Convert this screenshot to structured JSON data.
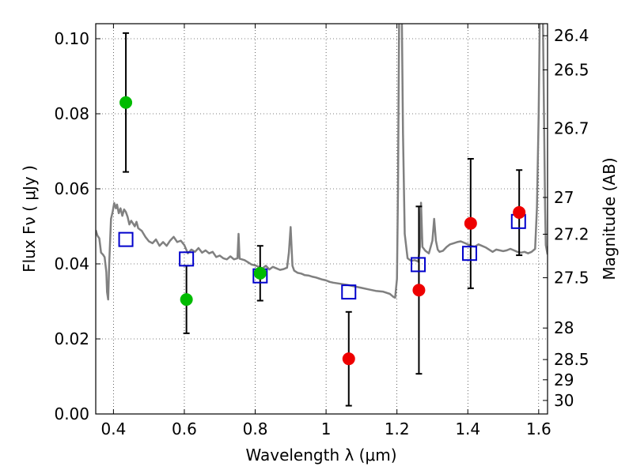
{
  "chart_data": {
    "type": "scatter",
    "xlabel": "Wavelength  λ (μm)",
    "ylabel": "Flux  Fν  ( μJy )",
    "ylabel_right": "Magnitude (AB)",
    "xlim": [
      0.35,
      1.625
    ],
    "ylim": [
      0.0,
      0.104
    ],
    "grid": true,
    "x_ticks": [
      0.4,
      0.6,
      0.8,
      1.0,
      1.2,
      1.4,
      1.6
    ],
    "x_tick_labels": [
      "0.4",
      "0.6",
      "0.8",
      "1",
      "1.2",
      "1.4",
      "1.6"
    ],
    "y_ticks": [
      0.0,
      0.02,
      0.04,
      0.06,
      0.08,
      0.1
    ],
    "y_tick_labels": [
      "0.00",
      "0.02",
      "0.04",
      "0.06",
      "0.08",
      "0.10"
    ],
    "right_ticks": [
      {
        "label": "26.4",
        "flux": 0.1008
      },
      {
        "label": "26.5",
        "flux": 0.0917
      },
      {
        "label": "26.7",
        "flux": 0.0761
      },
      {
        "label": "27",
        "flux": 0.0577
      },
      {
        "label": "27.2",
        "flux": 0.0479
      },
      {
        "label": "27.5",
        "flux": 0.0363
      },
      {
        "label": "28",
        "flux": 0.0229
      },
      {
        "label": "28.5",
        "flux": 0.0145
      },
      {
        "label": "29",
        "flux": 0.0091
      },
      {
        "label": "30",
        "flux": 0.0036
      }
    ],
    "series": [
      {
        "marker": "circle",
        "color": "#00bb00",
        "points": [
          {
            "x": 0.435,
            "y": 0.083,
            "err_lo": 0.0645,
            "err_hi": 0.1015
          },
          {
            "x": 0.606,
            "y": 0.0305,
            "err_lo": 0.0215,
            "err_hi": 0.0395
          },
          {
            "x": 0.814,
            "y": 0.0375,
            "err_lo": 0.0302,
            "err_hi": 0.0448
          }
        ]
      },
      {
        "marker": "circle",
        "color": "#ee0000",
        "points": [
          {
            "x": 1.064,
            "y": 0.0147,
            "err_lo": 0.0022,
            "err_hi": 0.0272
          },
          {
            "x": 1.262,
            "y": 0.033,
            "err_lo": 0.0107,
            "err_hi": 0.0553
          },
          {
            "x": 1.408,
            "y": 0.0508,
            "err_lo": 0.0335,
            "err_hi": 0.068
          },
          {
            "x": 1.545,
            "y": 0.0537,
            "err_lo": 0.0423,
            "err_hi": 0.065
          }
        ]
      },
      {
        "marker": "square",
        "color": "#0000cc",
        "points": [
          {
            "x": 0.435,
            "y": 0.0465
          },
          {
            "x": 0.606,
            "y": 0.0413
          },
          {
            "x": 0.814,
            "y": 0.0368
          },
          {
            "x": 1.064,
            "y": 0.0325
          },
          {
            "x": 1.26,
            "y": 0.0398
          },
          {
            "x": 1.405,
            "y": 0.0428
          },
          {
            "x": 1.543,
            "y": 0.0513
          }
        ]
      },
      {
        "marker": "line",
        "color": "#808080",
        "points": [
          [
            0.35,
            0.049
          ],
          [
            0.355,
            0.0475
          ],
          [
            0.36,
            0.0468
          ],
          [
            0.365,
            0.043
          ],
          [
            0.37,
            0.0425
          ],
          [
            0.375,
            0.0418
          ],
          [
            0.38,
            0.0378
          ],
          [
            0.382,
            0.0325
          ],
          [
            0.385,
            0.0305
          ],
          [
            0.388,
            0.04
          ],
          [
            0.393,
            0.052
          ],
          [
            0.398,
            0.054
          ],
          [
            0.402,
            0.0562
          ],
          [
            0.407,
            0.0548
          ],
          [
            0.41,
            0.0558
          ],
          [
            0.415,
            0.0535
          ],
          [
            0.42,
            0.0548
          ],
          [
            0.425,
            0.0528
          ],
          [
            0.43,
            0.0545
          ],
          [
            0.435,
            0.0538
          ],
          [
            0.44,
            0.0525
          ],
          [
            0.445,
            0.0505
          ],
          [
            0.45,
            0.0515
          ],
          [
            0.455,
            0.0508
          ],
          [
            0.46,
            0.05
          ],
          [
            0.465,
            0.0512
          ],
          [
            0.47,
            0.0495
          ],
          [
            0.48,
            0.0488
          ],
          [
            0.49,
            0.0472
          ],
          [
            0.5,
            0.046
          ],
          [
            0.51,
            0.0455
          ],
          [
            0.52,
            0.0465
          ],
          [
            0.53,
            0.0448
          ],
          [
            0.54,
            0.0458
          ],
          [
            0.55,
            0.0448
          ],
          [
            0.56,
            0.0462
          ],
          [
            0.57,
            0.0472
          ],
          [
            0.58,
            0.0458
          ],
          [
            0.59,
            0.0462
          ],
          [
            0.6,
            0.045
          ],
          [
            0.61,
            0.0428
          ],
          [
            0.62,
            0.0438
          ],
          [
            0.63,
            0.0432
          ],
          [
            0.64,
            0.0442
          ],
          [
            0.65,
            0.043
          ],
          [
            0.66,
            0.0436
          ],
          [
            0.67,
            0.0428
          ],
          [
            0.68,
            0.0432
          ],
          [
            0.69,
            0.0418
          ],
          [
            0.7,
            0.0422
          ],
          [
            0.71,
            0.0415
          ],
          [
            0.72,
            0.0412
          ],
          [
            0.73,
            0.042
          ],
          [
            0.74,
            0.0412
          ],
          [
            0.75,
            0.0415
          ],
          [
            0.753,
            0.048
          ],
          [
            0.756,
            0.0414
          ],
          [
            0.77,
            0.041
          ],
          [
            0.78,
            0.0404
          ],
          [
            0.79,
            0.0398
          ],
          [
            0.8,
            0.0396
          ],
          [
            0.81,
            0.0392
          ],
          [
            0.82,
            0.0388
          ],
          [
            0.83,
            0.0395
          ],
          [
            0.84,
            0.0385
          ],
          [
            0.85,
            0.0392
          ],
          [
            0.86,
            0.0388
          ],
          [
            0.87,
            0.0384
          ],
          [
            0.88,
            0.0386
          ],
          [
            0.89,
            0.039
          ],
          [
            0.895,
            0.043
          ],
          [
            0.9,
            0.0498
          ],
          [
            0.905,
            0.0395
          ],
          [
            0.91,
            0.0382
          ],
          [
            0.92,
            0.0376
          ],
          [
            0.93,
            0.0374
          ],
          [
            0.94,
            0.037
          ],
          [
            0.95,
            0.0369
          ],
          [
            0.96,
            0.0366
          ],
          [
            0.97,
            0.0364
          ],
          [
            0.98,
            0.0361
          ],
          [
            0.99,
            0.0358
          ],
          [
            1.0,
            0.0356
          ],
          [
            1.01,
            0.0352
          ],
          [
            1.02,
            0.035
          ],
          [
            1.04,
            0.0347
          ],
          [
            1.06,
            0.0344
          ],
          [
            1.08,
            0.034
          ],
          [
            1.1,
            0.0336
          ],
          [
            1.12,
            0.0332
          ],
          [
            1.14,
            0.0328
          ],
          [
            1.16,
            0.0326
          ],
          [
            1.18,
            0.032
          ],
          [
            1.19,
            0.0312
          ],
          [
            1.195,
            0.031
          ],
          [
            1.2,
            0.036
          ],
          [
            1.203,
            0.06
          ],
          [
            1.206,
            0.1045
          ],
          [
            1.214,
            0.1045
          ],
          [
            1.217,
            0.075
          ],
          [
            1.222,
            0.048
          ],
          [
            1.23,
            0.0415
          ],
          [
            1.24,
            0.0408
          ],
          [
            1.25,
            0.041
          ],
          [
            1.26,
            0.0406
          ],
          [
            1.265,
            0.0445
          ],
          [
            1.268,
            0.0563
          ],
          [
            1.272,
            0.0445
          ],
          [
            1.28,
            0.0435
          ],
          [
            1.29,
            0.0428
          ],
          [
            1.3,
            0.0462
          ],
          [
            1.305,
            0.052
          ],
          [
            1.31,
            0.0462
          ],
          [
            1.315,
            0.0438
          ],
          [
            1.32,
            0.0432
          ],
          [
            1.33,
            0.0435
          ],
          [
            1.34,
            0.0445
          ],
          [
            1.35,
            0.0452
          ],
          [
            1.36,
            0.0455
          ],
          [
            1.37,
            0.0458
          ],
          [
            1.38,
            0.046
          ],
          [
            1.39,
            0.0456
          ],
          [
            1.4,
            0.0452
          ],
          [
            1.41,
            0.0448
          ],
          [
            1.42,
            0.0446
          ],
          [
            1.43,
            0.0452
          ],
          [
            1.44,
            0.0448
          ],
          [
            1.45,
            0.0444
          ],
          [
            1.46,
            0.0438
          ],
          [
            1.47,
            0.0432
          ],
          [
            1.48,
            0.0438
          ],
          [
            1.49,
            0.0436
          ],
          [
            1.5,
            0.0434
          ],
          [
            1.51,
            0.0436
          ],
          [
            1.52,
            0.044
          ],
          [
            1.53,
            0.0436
          ],
          [
            1.54,
            0.0432
          ],
          [
            1.55,
            0.043
          ],
          [
            1.56,
            0.0432
          ],
          [
            1.57,
            0.0428
          ],
          [
            1.58,
            0.0432
          ],
          [
            1.59,
            0.044
          ],
          [
            1.595,
            0.055
          ],
          [
            1.6,
            0.08
          ],
          [
            1.603,
            0.1045
          ],
          [
            1.612,
            0.1045
          ],
          [
            1.615,
            0.08
          ],
          [
            1.618,
            0.055
          ],
          [
            1.62,
            0.045
          ],
          [
            1.625,
            0.0425
          ]
        ]
      }
    ]
  }
}
